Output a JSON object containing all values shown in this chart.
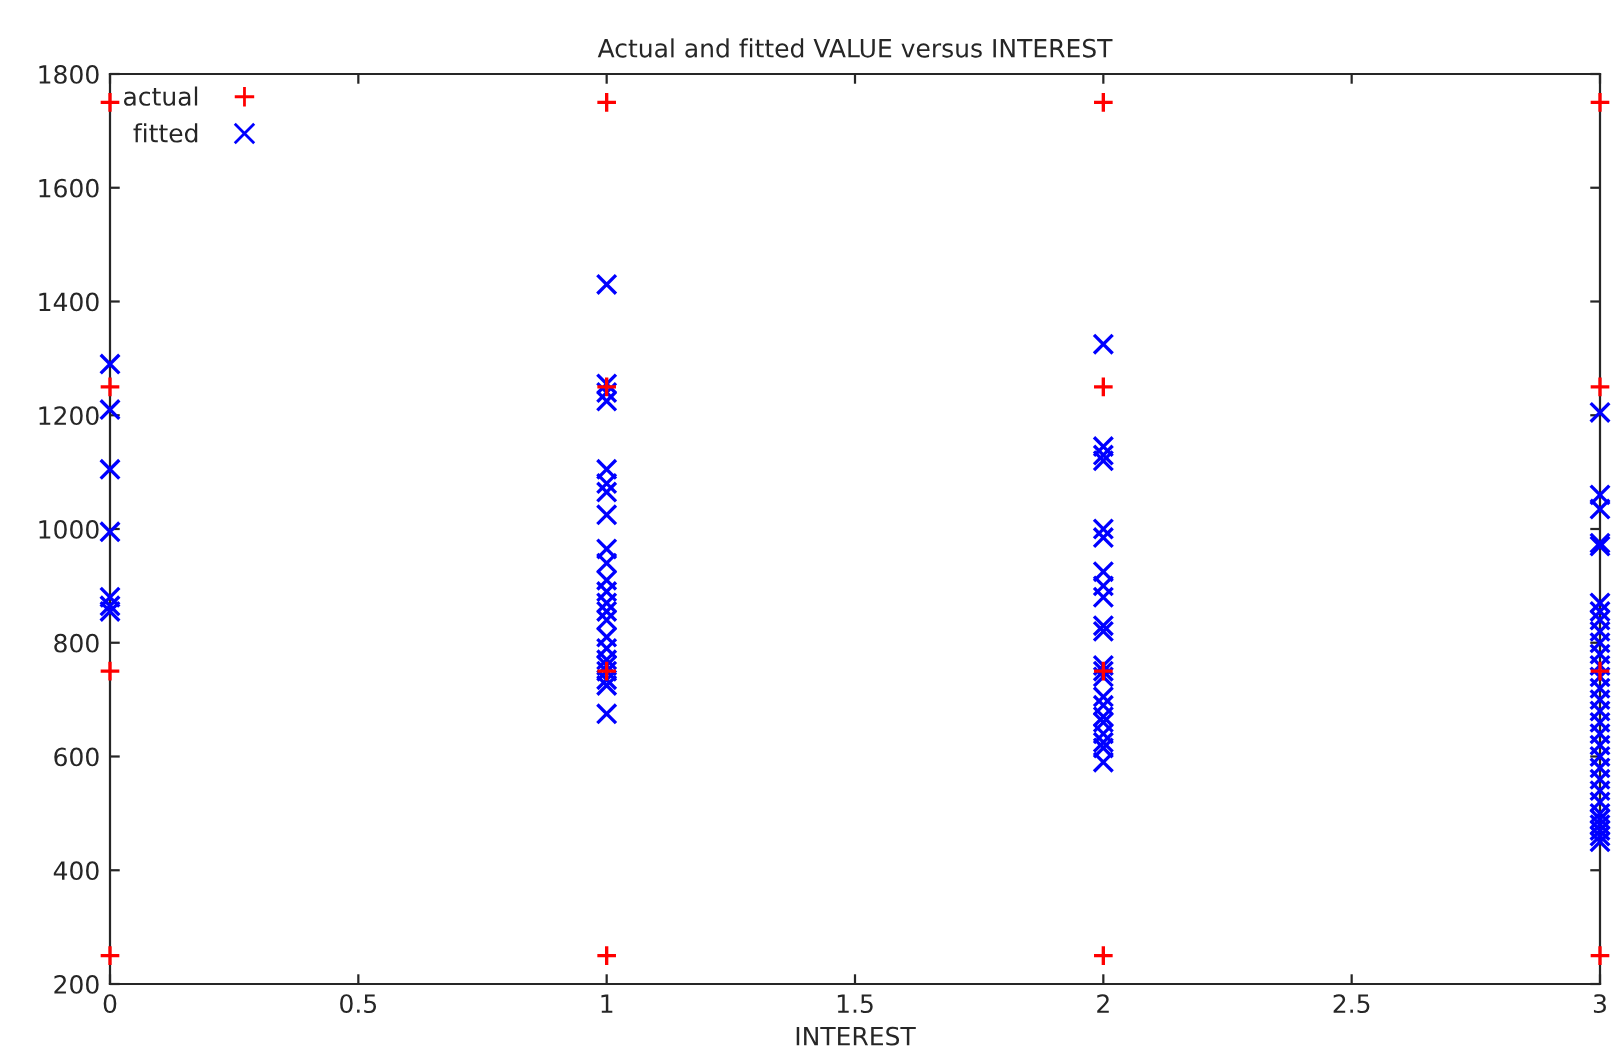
{
  "chart_data": {
    "type": "scatter",
    "title": "Actual and fitted VALUE versus INTEREST",
    "xlabel": "INTEREST",
    "xlim": [
      0,
      3
    ],
    "xticks": [
      0,
      0.5,
      1,
      1.5,
      2,
      2.5,
      3
    ],
    "ylim": [
      200,
      1800
    ],
    "yticks": [
      200,
      400,
      600,
      800,
      1000,
      1200,
      1400,
      1600,
      1800
    ],
    "grid": false,
    "legend": "top left",
    "series": [
      {
        "name": "actual",
        "color": "#ff0000",
        "marker": "plus",
        "x": [
          0,
          0,
          0,
          0,
          1,
          1,
          1,
          1,
          2,
          2,
          2,
          2,
          3,
          3,
          3,
          3
        ],
        "values": [
          1750,
          1250,
          750,
          250,
          1750,
          1250,
          750,
          250,
          1750,
          1250,
          750,
          250,
          1750,
          1250,
          750,
          250
        ]
      },
      {
        "name": "fitted",
        "color": "#0000ff",
        "marker": "cross",
        "x": [
          0,
          0,
          0,
          0,
          0,
          0,
          0,
          1,
          1,
          1,
          1,
          1,
          1,
          1,
          1,
          1,
          1,
          1,
          1,
          1,
          1,
          1,
          1,
          1,
          1,
          1,
          1,
          1,
          1,
          1,
          2,
          2,
          2,
          2,
          2,
          2,
          2,
          2,
          2,
          2,
          2,
          2,
          2,
          2,
          2,
          2,
          2,
          2,
          2,
          2,
          2,
          2,
          3,
          3,
          3,
          3,
          3,
          3,
          3,
          3,
          3,
          3,
          3,
          3,
          3,
          3,
          3,
          3,
          3,
          3,
          3,
          3,
          3,
          3,
          3,
          3,
          3,
          3,
          3,
          3,
          3,
          3
        ],
        "values": [
          1290,
          1210,
          1105,
          995,
          880,
          865,
          855,
          1430,
          1255,
          1240,
          1225,
          1105,
          1080,
          1065,
          1025,
          965,
          940,
          910,
          890,
          870,
          855,
          840,
          810,
          790,
          770,
          760,
          750,
          735,
          725,
          675,
          1325,
          1145,
          1130,
          1120,
          1000,
          985,
          925,
          900,
          880,
          830,
          820,
          760,
          750,
          740,
          705,
          690,
          670,
          660,
          640,
          625,
          615,
          590,
          1205,
          1060,
          1035,
          975,
          970,
          870,
          855,
          840,
          820,
          800,
          780,
          760,
          740,
          720,
          700,
          680,
          660,
          640,
          620,
          600,
          580,
          560,
          540,
          520,
          500,
          490,
          480,
          470,
          460,
          450
        ]
      }
    ]
  }
}
